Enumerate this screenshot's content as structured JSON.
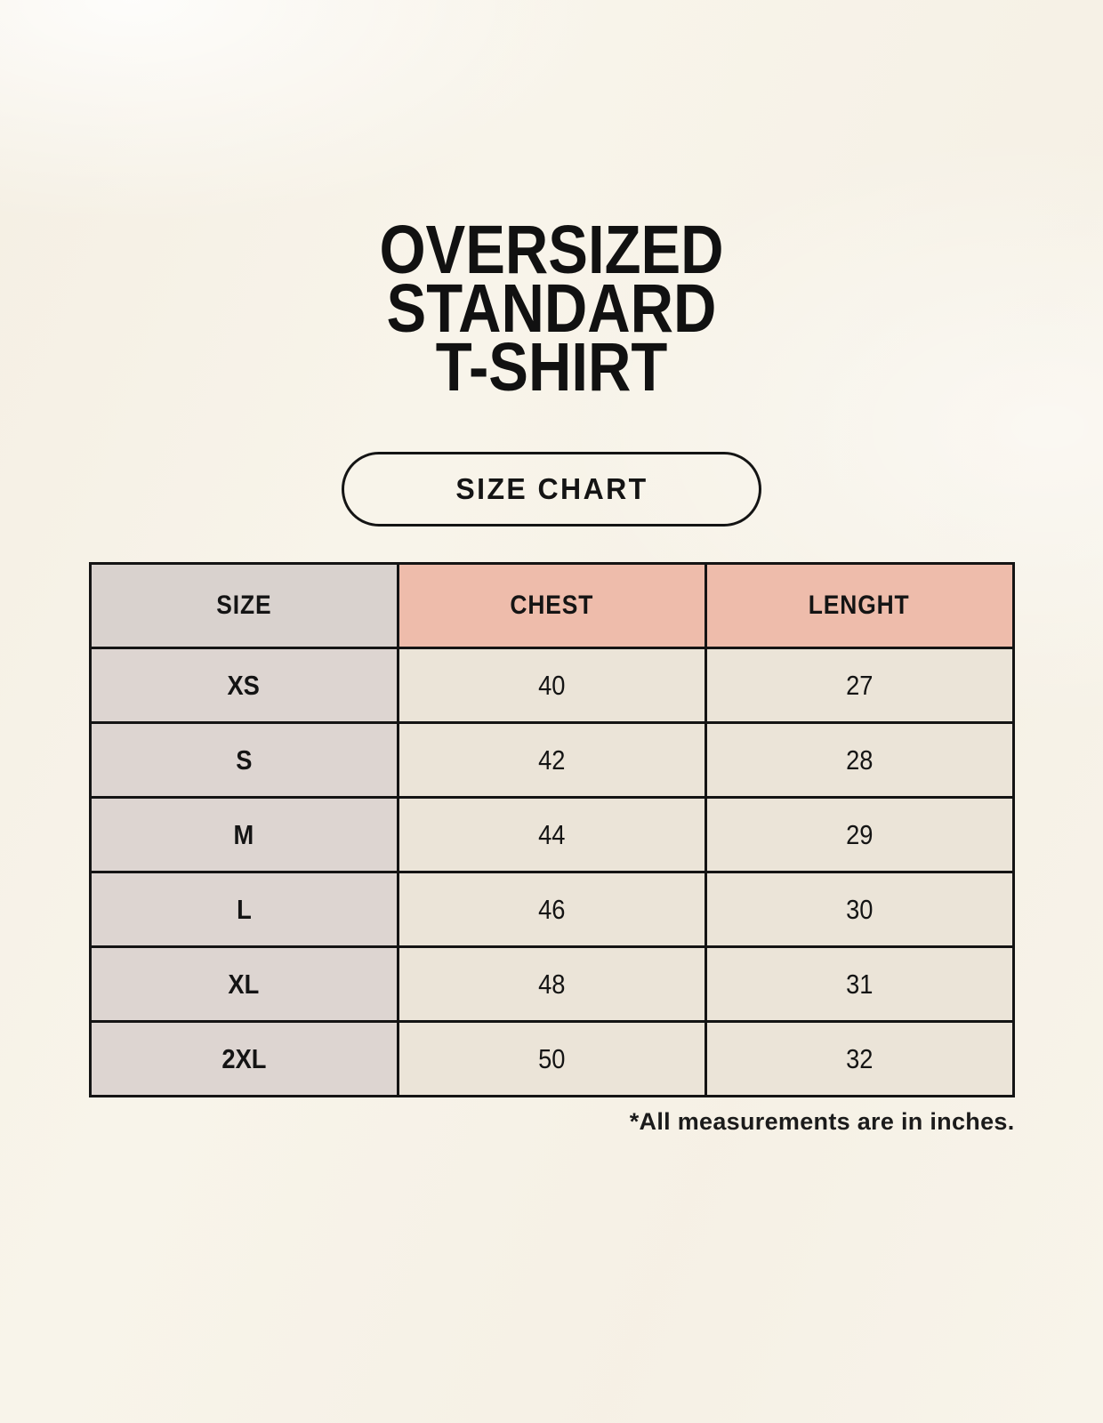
{
  "title": {
    "lines": [
      "OVERSIZED",
      "STANDARD",
      "T-SHIRT"
    ]
  },
  "badge": {
    "label": "SIZE CHART"
  },
  "table": {
    "headers": [
      "SIZE",
      "CHEST",
      "LENGHT"
    ],
    "rows": [
      {
        "size": "XS",
        "chest": "40",
        "length": "27"
      },
      {
        "size": "S",
        "chest": "42",
        "length": "28"
      },
      {
        "size": "M",
        "chest": "44",
        "length": "29"
      },
      {
        "size": "L",
        "chest": "46",
        "length": "30"
      },
      {
        "size": "XL",
        "chest": "48",
        "length": "31"
      },
      {
        "size": "2XL",
        "chest": "50",
        "length": "32"
      }
    ]
  },
  "footnote": "*All measurements are in inches.",
  "colors": {
    "background": "#f8f4ea",
    "header_size_bg": "#d9d2ce",
    "header_measure_bg": "#eebcab",
    "size_column_bg": "#ddd5d1",
    "value_cell_bg": "#ebe4d8",
    "border": "#141414",
    "text": "#111111"
  },
  "chart_data": {
    "type": "table",
    "title": "OVERSIZED STANDARD T-SHIRT",
    "subtitle": "SIZE CHART",
    "columns": [
      "SIZE",
      "CHEST",
      "LENGHT"
    ],
    "rows": [
      [
        "XS",
        40,
        27
      ],
      [
        "S",
        42,
        28
      ],
      [
        "M",
        44,
        29
      ],
      [
        "L",
        46,
        30
      ],
      [
        "XL",
        48,
        31
      ],
      [
        "2XL",
        50,
        32
      ]
    ],
    "units": "inches",
    "footnote": "*All measurements are in inches."
  }
}
